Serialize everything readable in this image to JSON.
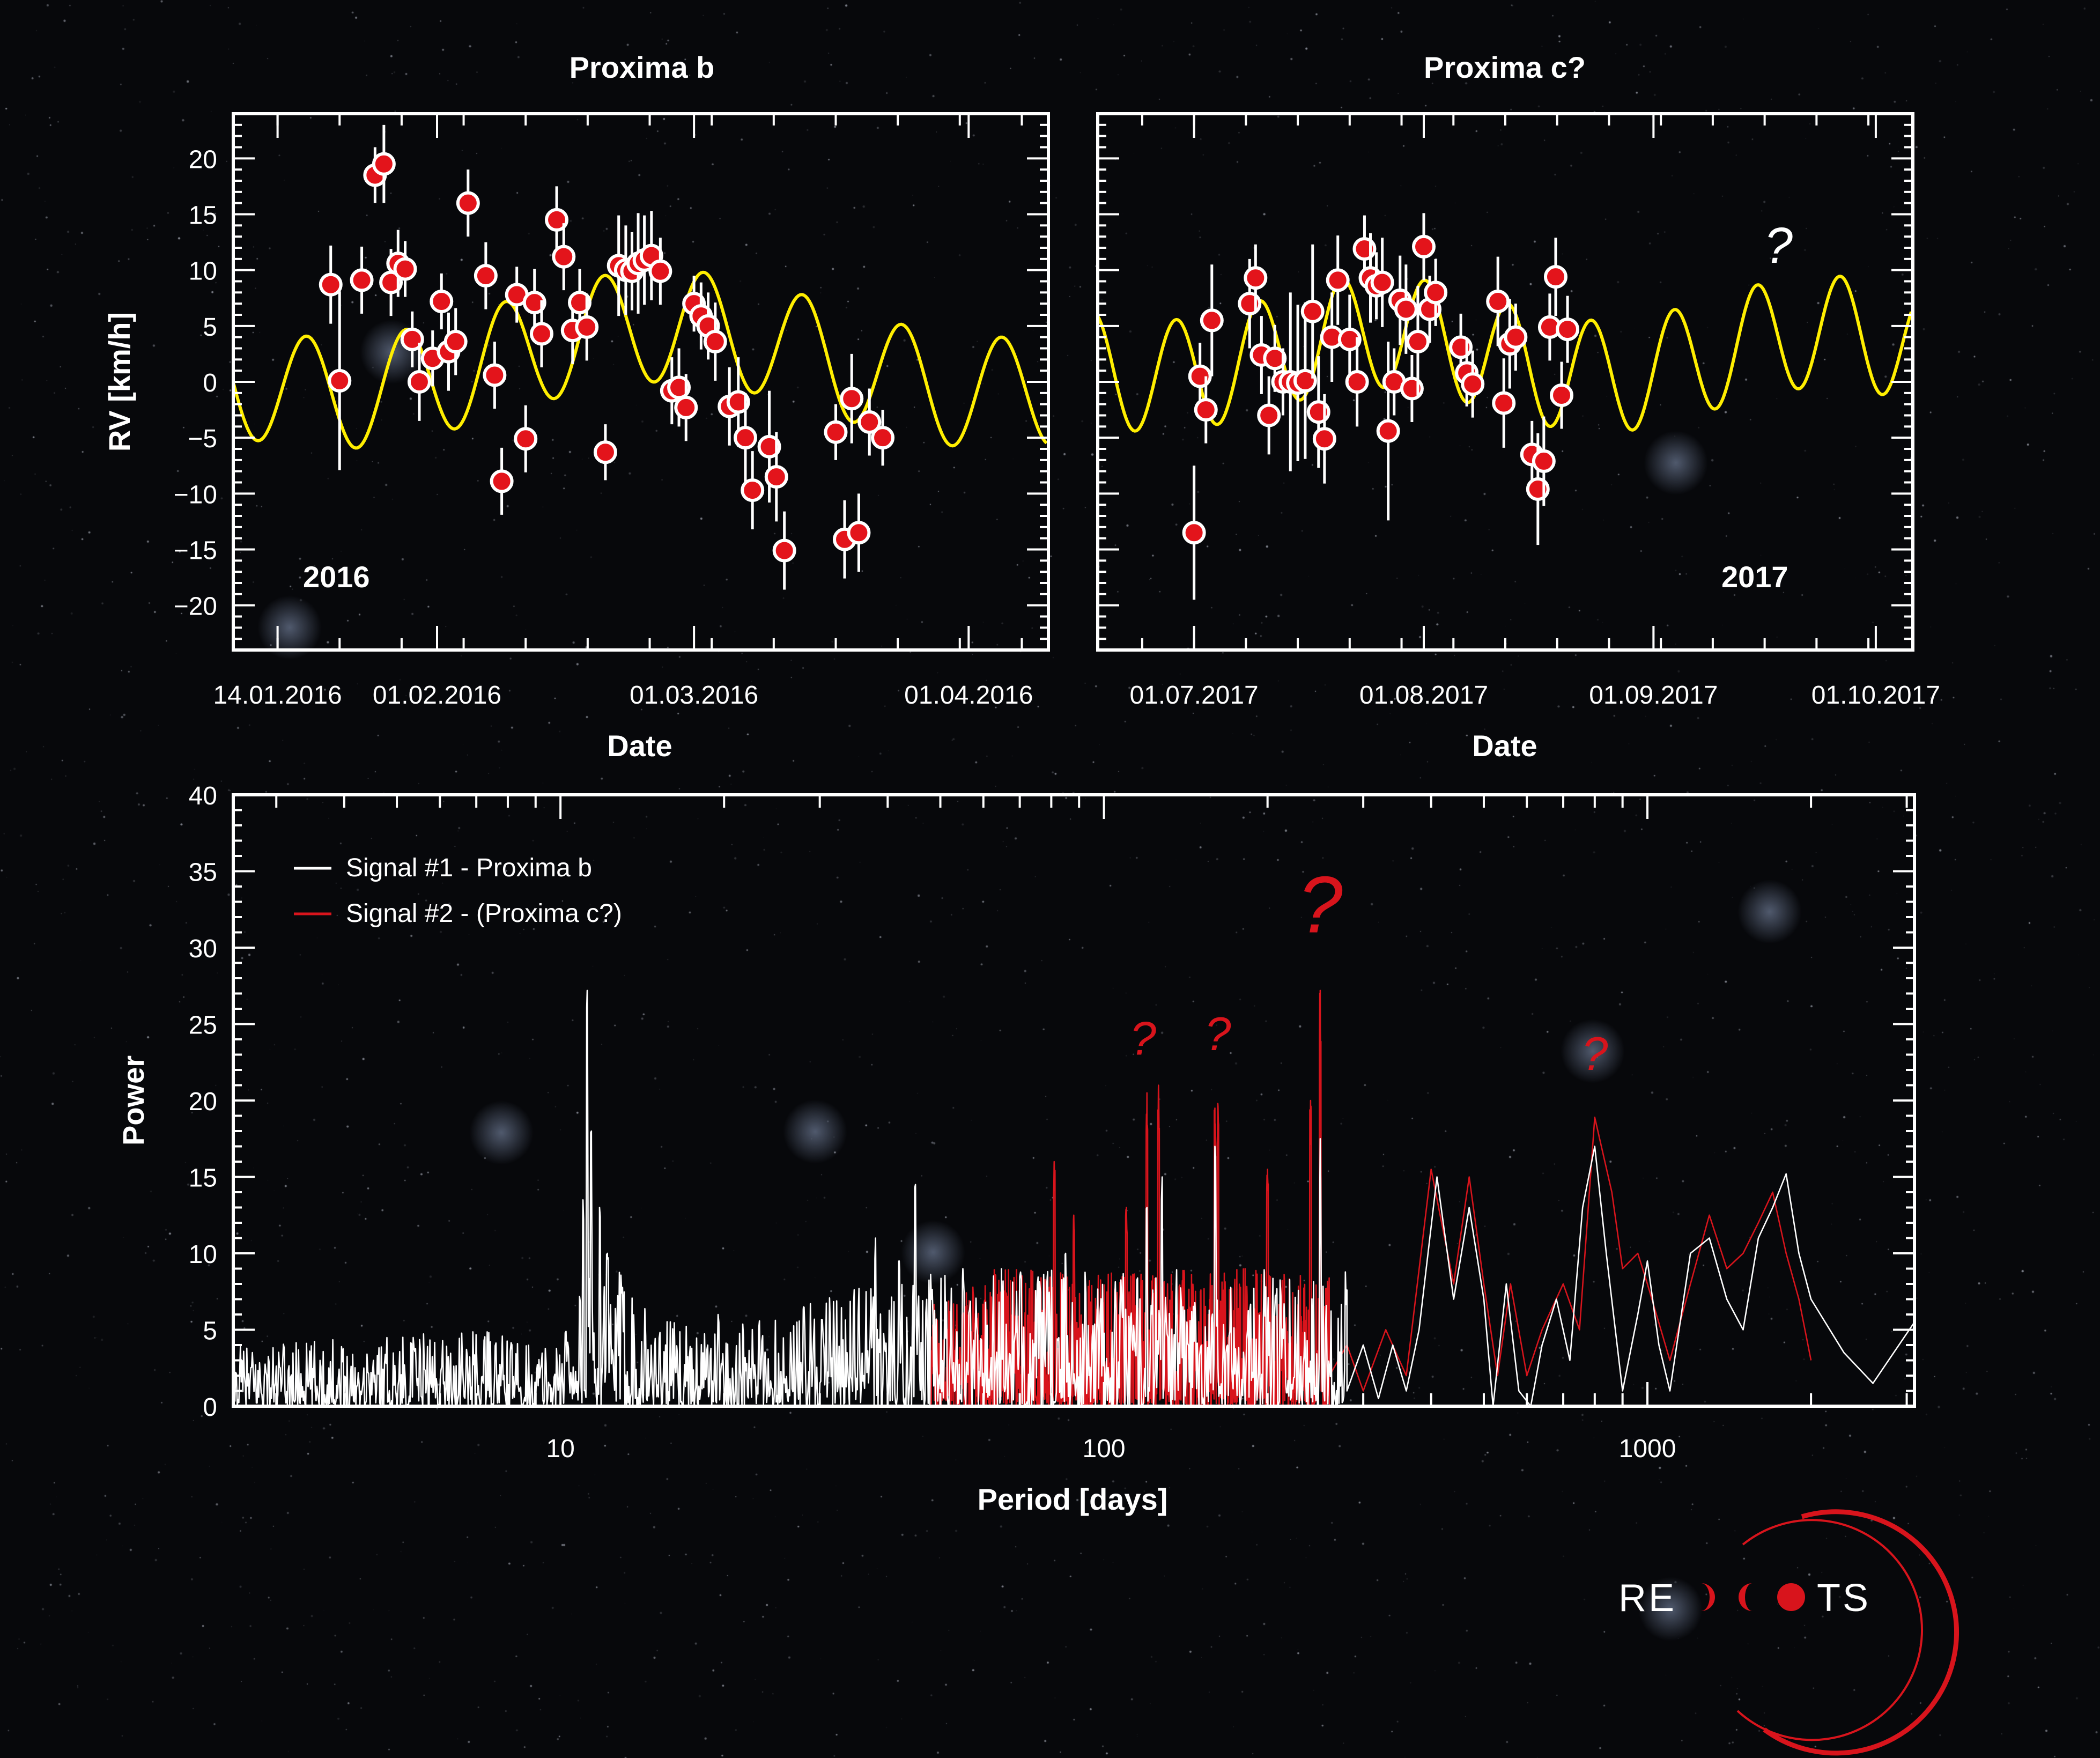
{
  "colors": {
    "background": "#07080b",
    "model": "#ffee00",
    "points": "#e3141b",
    "signal1": "#ffffff",
    "signal2": "#d8141c"
  },
  "chart_data": [
    {
      "type": "scatter",
      "title": "Proxima b",
      "year_label": "2016",
      "xlabel": "Date",
      "ylabel": "RV [km/h]",
      "x_ticks": [
        "14.01.2016",
        "01.02.2016",
        "01.03.2016",
        "01.04.2016"
      ],
      "x_tick_days": [
        0,
        18,
        47,
        78
      ],
      "xlim_days": [
        -5,
        87
      ],
      "ylim": [
        -24,
        24
      ],
      "y_ticks": [
        20,
        15,
        10,
        5,
        0,
        -5,
        -10,
        -15,
        -20
      ],
      "y_tick_labels": [
        "20",
        "15",
        "10",
        "5",
        "0",
        "−5",
        "−10",
        "−15",
        "−20"
      ],
      "model_curve": {
        "mean": 2,
        "amplitude": 5,
        "period_days": 11.2,
        "phase_days": 0.5,
        "drift_amplitude": 3,
        "drift_period_days": 75,
        "drift_phase_days": 25
      },
      "points": [
        {
          "day": 6,
          "rv": 8.7,
          "err": 3.5
        },
        {
          "day": 7,
          "rv": 0.1,
          "err": 8
        },
        {
          "day": 9.5,
          "rv": 9.1,
          "err": 3
        },
        {
          "day": 11,
          "rv": 18.5,
          "err": 2.5
        },
        {
          "day": 12,
          "rv": 19.5,
          "err": 3.5
        },
        {
          "day": 12.8,
          "rv": 8.9,
          "err": 3
        },
        {
          "day": 13.6,
          "rv": 10.6,
          "err": 3
        },
        {
          "day": 14.4,
          "rv": 10.1,
          "err": 2.5
        },
        {
          "day": 15.2,
          "rv": 3.8,
          "err": 2.5
        },
        {
          "day": 16,
          "rv": 0,
          "err": 3.5
        },
        {
          "day": 17.5,
          "rv": 2.1,
          "err": 2.5
        },
        {
          "day": 18.5,
          "rv": 7.2,
          "err": 2.5
        },
        {
          "day": 19.3,
          "rv": 2.7,
          "err": 3.5
        },
        {
          "day": 20.1,
          "rv": 3.6,
          "err": 3
        },
        {
          "day": 21.5,
          "rv": 16,
          "err": 3
        },
        {
          "day": 23.5,
          "rv": 9.5,
          "err": 3
        },
        {
          "day": 24.5,
          "rv": 0.6,
          "err": 3
        },
        {
          "day": 25.3,
          "rv": -8.9,
          "err": 3
        },
        {
          "day": 27,
          "rv": 7.8,
          "err": 2.5
        },
        {
          "day": 28,
          "rv": -5.1,
          "err": 3
        },
        {
          "day": 29,
          "rv": 7.1,
          "err": 3
        },
        {
          "day": 29.8,
          "rv": 4.3,
          "err": 3
        },
        {
          "day": 31.5,
          "rv": 14.5,
          "err": 3
        },
        {
          "day": 32.3,
          "rv": 11.2,
          "err": 3
        },
        {
          "day": 33.3,
          "rv": 4.6,
          "err": 3
        },
        {
          "day": 34.1,
          "rv": 7.1,
          "err": 3
        },
        {
          "day": 34.9,
          "rv": 4.9,
          "err": 3
        },
        {
          "day": 37,
          "rv": -6.3,
          "err": 2.5
        },
        {
          "day": 38.5,
          "rv": 10.4,
          "err": 4.5
        },
        {
          "day": 39.3,
          "rv": 10,
          "err": 4
        },
        {
          "day": 40,
          "rv": 9.9,
          "err": 3.5
        },
        {
          "day": 40.7,
          "rv": 10.6,
          "err": 4.5
        },
        {
          "day": 41.4,
          "rv": 10.9,
          "err": 4
        },
        {
          "day": 42.2,
          "rv": 11.3,
          "err": 4
        },
        {
          "day": 43.2,
          "rv": 9.9,
          "err": 3
        },
        {
          "day": 44.5,
          "rv": -0.8,
          "err": 3
        },
        {
          "day": 45.3,
          "rv": -0.5,
          "err": 3.5
        },
        {
          "day": 46.1,
          "rv": -2.3,
          "err": 3
        },
        {
          "day": 47,
          "rv": 7,
          "err": 2.5
        },
        {
          "day": 47.8,
          "rv": 5.9,
          "err": 3
        },
        {
          "day": 48.6,
          "rv": 5,
          "err": 3
        },
        {
          "day": 49.4,
          "rv": 3.6,
          "err": 3.5
        },
        {
          "day": 51,
          "rv": -2.2,
          "err": 3.5
        },
        {
          "day": 52,
          "rv": -1.8,
          "err": 4
        },
        {
          "day": 52.8,
          "rv": -5,
          "err": 4
        },
        {
          "day": 53.6,
          "rv": -9.7,
          "err": 3.5
        },
        {
          "day": 55.5,
          "rv": -5.8,
          "err": 5
        },
        {
          "day": 56.3,
          "rv": -8.5,
          "err": 4
        },
        {
          "day": 57.2,
          "rv": -15.1,
          "err": 3.5
        },
        {
          "day": 63,
          "rv": -4.5,
          "err": 2.5
        },
        {
          "day": 64,
          "rv": -14.1,
          "err": 3.5
        },
        {
          "day": 64.8,
          "rv": -1.5,
          "err": 4
        },
        {
          "day": 65.6,
          "rv": -13.5,
          "err": 3.5
        },
        {
          "day": 66.8,
          "rv": -3.6,
          "err": 3
        },
        {
          "day": 68.3,
          "rv": -5,
          "err": 2.5
        }
      ]
    },
    {
      "type": "scatter",
      "title": "Proxima c?",
      "year_label": "2017",
      "annotation": "?",
      "xlabel": "Date",
      "ylabel": "",
      "x_ticks": [
        "01.07.2017",
        "01.08.2017",
        "01.09.2017",
        "01.10.2017"
      ],
      "x_tick_days": [
        0,
        31,
        62,
        92
      ],
      "xlim_days": [
        -13,
        97
      ],
      "ylim": [
        -24,
        24
      ],
      "y_ticks": [
        20,
        15,
        10,
        5,
        0,
        -5,
        -10,
        -15,
        -20
      ],
      "model_curve": {
        "mean": 2.5,
        "amplitude": 5,
        "period_days": 11.2,
        "phase_days": 6,
        "drift_amplitude": 2,
        "drift_period_days": 60,
        "drift_phase_days": 10
      },
      "points": [
        {
          "day": 0,
          "rv": -13.5,
          "err": 6
        },
        {
          "day": 0.8,
          "rv": 0.5,
          "err": 3
        },
        {
          "day": 1.6,
          "rv": -2.5,
          "err": 3
        },
        {
          "day": 2.4,
          "rv": 5.5,
          "err": 5
        },
        {
          "day": 7.5,
          "rv": 7,
          "err": 4
        },
        {
          "day": 8.3,
          "rv": 9.3,
          "err": 3
        },
        {
          "day": 9.1,
          "rv": 2.4,
          "err": 3.5
        },
        {
          "day": 10.1,
          "rv": -3,
          "err": 3.5
        },
        {
          "day": 10.9,
          "rv": 2.1,
          "err": 3
        },
        {
          "day": 12,
          "rv": 0,
          "err": 3
        },
        {
          "day": 13,
          "rv": 0,
          "err": 8
        },
        {
          "day": 14,
          "rv": -0.1,
          "err": 7
        },
        {
          "day": 15,
          "rv": 0.1,
          "err": 7
        },
        {
          "day": 16,
          "rv": 6.3,
          "err": 6
        },
        {
          "day": 16.8,
          "rv": -2.7,
          "err": 5
        },
        {
          "day": 17.6,
          "rv": -5.1,
          "err": 4
        },
        {
          "day": 18.6,
          "rv": 4,
          "err": 4
        },
        {
          "day": 19.4,
          "rv": 9.1,
          "err": 4
        },
        {
          "day": 21,
          "rv": 3.8,
          "err": 4
        },
        {
          "day": 22,
          "rv": 0,
          "err": 4
        },
        {
          "day": 23,
          "rv": 11.9,
          "err": 3
        },
        {
          "day": 23.8,
          "rv": 9.3,
          "err": 4
        },
        {
          "day": 24.6,
          "rv": 8.6,
          "err": 3
        },
        {
          "day": 25.4,
          "rv": 8.9,
          "err": 4
        },
        {
          "day": 26.2,
          "rv": -4.4,
          "err": 8
        },
        {
          "day": 27,
          "rv": 0,
          "err": 3
        },
        {
          "day": 27.8,
          "rv": 7.3,
          "err": 4
        },
        {
          "day": 28.6,
          "rv": 6.5,
          "err": 4
        },
        {
          "day": 29.4,
          "rv": -0.6,
          "err": 3
        },
        {
          "day": 30.2,
          "rv": 3.6,
          "err": 5
        },
        {
          "day": 31,
          "rv": 12.1,
          "err": 3
        },
        {
          "day": 31.8,
          "rv": 6.5,
          "err": 3
        },
        {
          "day": 32.6,
          "rv": 8,
          "err": 3
        },
        {
          "day": 36,
          "rv": 3.1,
          "err": 3
        },
        {
          "day": 36.8,
          "rv": 0.8,
          "err": 3
        },
        {
          "day": 37.6,
          "rv": -0.2,
          "err": 3
        },
        {
          "day": 41,
          "rv": 7.2,
          "err": 4
        },
        {
          "day": 41.8,
          "rv": -1.9,
          "err": 4
        },
        {
          "day": 42.6,
          "rv": 3.4,
          "err": 4
        },
        {
          "day": 43.4,
          "rv": 4,
          "err": 3
        },
        {
          "day": 45.6,
          "rv": -6.5,
          "err": 3
        },
        {
          "day": 46.4,
          "rv": -9.6,
          "err": 5
        },
        {
          "day": 47.2,
          "rv": -7.1,
          "err": 4
        },
        {
          "day": 48,
          "rv": 4.9,
          "err": 3
        },
        {
          "day": 48.8,
          "rv": 9.4,
          "err": 3.5
        },
        {
          "day": 49.6,
          "rv": -1.2,
          "err": 3
        },
        {
          "day": 50.4,
          "rv": 4.7,
          "err": 3
        }
      ]
    },
    {
      "type": "line",
      "xlabel": "Period [days]",
      "ylabel": "Power",
      "x_scale": "log",
      "xlim": [
        2.5,
        3100
      ],
      "ylim": [
        0,
        40
      ],
      "x_ticks": [
        10,
        100,
        1000
      ],
      "x_tick_labels": [
        "10",
        "100",
        "1000"
      ],
      "y_ticks": [
        0,
        5,
        10,
        15,
        20,
        25,
        30,
        35,
        40
      ],
      "legend": [
        "Signal #1 - Proxima b",
        "Signal #2 - (Proxima c?)"
      ],
      "legend_position": "top-left",
      "annotations": [
        {
          "text": "?",
          "period": 118,
          "power": 23,
          "size": "small"
        },
        {
          "text": "?",
          "period": 162,
          "power": 23.3,
          "size": "small"
        },
        {
          "text": "?",
          "period": 250,
          "power": 31,
          "size": "large"
        },
        {
          "text": "?",
          "period": 800,
          "power": 22,
          "size": "small"
        }
      ],
      "series": [
        {
          "name": "Signal #1 - Proxima b",
          "color": "#ffffff",
          "noise_from_period": 2.5,
          "envelope": [
            [
              2.5,
              4
            ],
            [
              4,
              4.5
            ],
            [
              7,
              5
            ],
            [
              10,
              4
            ],
            [
              11.2,
              27
            ],
            [
              12,
              12
            ],
            [
              15,
              6
            ],
            [
              20,
              5
            ],
            [
              30,
              7
            ],
            [
              45,
              10
            ],
            [
              70,
              9
            ],
            [
              100,
              10
            ],
            [
              200,
              13
            ],
            [
              250,
              20
            ],
            [
              320,
              0
            ]
          ],
          "peaks": [
            [
              11.2,
              27.2
            ],
            [
              11.4,
              18
            ],
            [
              11.0,
              13.5
            ],
            [
              11.8,
              13
            ],
            [
              12.2,
              10
            ],
            [
              19.5,
              6
            ],
            [
              28,
              6.5
            ],
            [
              38,
              11
            ],
            [
              42,
              9.5
            ],
            [
              45,
              14.5
            ],
            [
              55,
              9
            ],
            [
              85,
              10
            ],
            [
              120,
              13
            ],
            [
              128,
              15
            ],
            [
              160,
              17
            ],
            [
              250,
              17.5
            ]
          ],
          "smooth": [
            [
              280,
              1
            ],
            [
              300,
              4
            ],
            [
              320,
              0.5
            ],
            [
              340,
              4
            ],
            [
              360,
              1
            ],
            [
              380,
              5
            ],
            [
              410,
              15
            ],
            [
              440,
              7
            ],
            [
              470,
              13
            ],
            [
              500,
              7
            ],
            [
              520,
              0
            ],
            [
              550,
              8
            ],
            [
              580,
              1
            ],
            [
              610,
              0
            ],
            [
              640,
              4
            ],
            [
              680,
              7
            ],
            [
              720,
              3
            ],
            [
              760,
              13
            ],
            [
              800,
              17
            ],
            [
              840,
              10
            ],
            [
              900,
              1
            ],
            [
              960,
              6
            ],
            [
              1000,
              9.5
            ],
            [
              1050,
              4
            ],
            [
              1100,
              1
            ],
            [
              1200,
              10
            ],
            [
              1300,
              11
            ],
            [
              1400,
              7
            ],
            [
              1500,
              5
            ],
            [
              1600,
              11
            ],
            [
              1700,
              13
            ],
            [
              1800,
              15.2
            ],
            [
              1900,
              10
            ],
            [
              2000,
              7
            ],
            [
              2300,
              3.5
            ],
            [
              2600,
              1.5
            ],
            [
              3100,
              5.5
            ]
          ]
        },
        {
          "name": "Signal #2 - (Proxima c?)",
          "color": "#d8141c",
          "noise_from_period": 48,
          "envelope": [
            [
              48,
              7
            ],
            [
              60,
              8
            ],
            [
              80,
              16
            ],
            [
              110,
              13
            ],
            [
              125,
              21
            ],
            [
              150,
              16
            ],
            [
              162,
              20
            ],
            [
              200,
              16
            ],
            [
              230,
              20
            ],
            [
              250,
              27
            ],
            [
              270,
              0
            ]
          ],
          "peaks": [
            [
              81,
              16
            ],
            [
              88,
              12.5
            ],
            [
              120,
              20.5
            ],
            [
              126,
              21
            ],
            [
              160,
              19.5
            ],
            [
              162,
              19.8
            ],
            [
              240,
              20
            ],
            [
              250,
              27.2
            ],
            [
              200,
              15.5
            ],
            [
              110,
              13
            ]
          ],
          "smooth": [
            [
              260,
              2
            ],
            [
              280,
              4
            ],
            [
              300,
              1
            ],
            [
              330,
              5
            ],
            [
              360,
              2
            ],
            [
              400,
              15.5
            ],
            [
              440,
              8
            ],
            [
              470,
              15
            ],
            [
              500,
              8
            ],
            [
              530,
              2
            ],
            [
              560,
              8
            ],
            [
              600,
              2
            ],
            [
              640,
              5
            ],
            [
              700,
              8
            ],
            [
              750,
              5
            ],
            [
              800,
              18.9
            ],
            [
              860,
              14
            ],
            [
              900,
              9
            ],
            [
              960,
              10
            ],
            [
              1000,
              8
            ],
            [
              1100,
              3
            ],
            [
              1200,
              8
            ],
            [
              1300,
              12.5
            ],
            [
              1400,
              9
            ],
            [
              1500,
              10
            ],
            [
              1600,
              12
            ],
            [
              1700,
              14
            ],
            [
              1800,
              10
            ],
            [
              1900,
              7
            ],
            [
              2000,
              3
            ]
          ]
        }
      ]
    }
  ],
  "logo": {
    "text_left": "RE",
    "text_right": "TS"
  }
}
